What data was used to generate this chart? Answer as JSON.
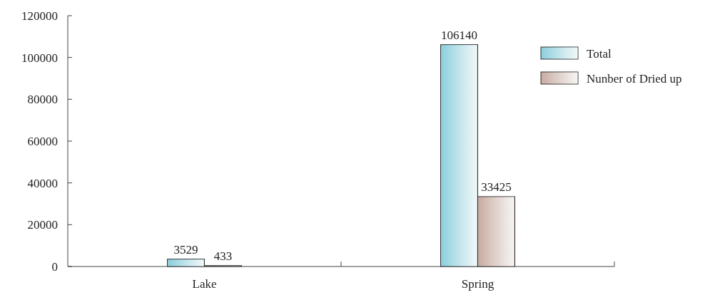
{
  "chart_data": {
    "type": "bar",
    "categories": [
      "Lake",
      "Spring"
    ],
    "series": [
      {
        "name": "Total",
        "color": "#8ccfdc",
        "values": [
          3529,
          106140
        ]
      },
      {
        "name": "Nunber of Dried up",
        "color": "#c8aca2",
        "values": [
          433,
          33425
        ]
      }
    ],
    "ylim": [
      0,
      120000
    ],
    "yticks": [
      0,
      20000,
      40000,
      60000,
      80000,
      100000,
      120000
    ],
    "data_labels": true,
    "legend": "top right",
    "grid": false
  }
}
